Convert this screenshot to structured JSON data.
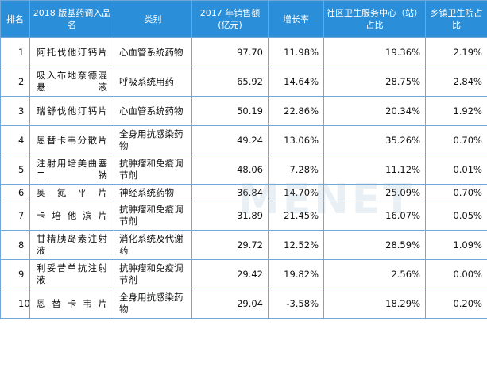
{
  "headers": {
    "rank": "排名",
    "drug": "2018 版基药调入品名",
    "category": "类别",
    "sales": "2017 年销售额(亿元)",
    "growth": "增长率",
    "community": "社区卫生服务中心（站）占比",
    "township": "乡镇卫生院占比"
  },
  "rows": [
    {
      "rank": "1",
      "drug": "阿托伐他汀钙片",
      "category": "心血管系统药物",
      "sales": "97.70",
      "growth": "11.98%",
      "community": "19.36%",
      "township": "2.19%"
    },
    {
      "rank": "2",
      "drug": "吸入布地奈德混悬液",
      "category": "呼吸系统用药",
      "sales": "65.92",
      "growth": "14.64%",
      "community": "28.75%",
      "township": "2.84%"
    },
    {
      "rank": "3",
      "drug": "瑞舒伐他汀钙片",
      "category": "心血管系统药物",
      "sales": "50.19",
      "growth": "22.86%",
      "community": "20.34%",
      "township": "1.92%"
    },
    {
      "rank": "4",
      "drug": "恩替卡韦分散片",
      "category": "全身用抗感染药物",
      "sales": "49.24",
      "growth": "13.06%",
      "community": "35.26%",
      "township": "0.70%"
    },
    {
      "rank": "5",
      "drug": "注射用培美曲塞二钠",
      "category": "抗肿瘤和免疫调节剂",
      "sales": "48.06",
      "growth": "7.28%",
      "community": "11.12%",
      "township": "0.01%"
    },
    {
      "rank": "6",
      "drug": "奥氮平片",
      "category": "神经系统药物",
      "sales": "36.84",
      "growth": "14.70%",
      "community": "25.09%",
      "township": "0.70%"
    },
    {
      "rank": "7",
      "drug": "卡培他滨片",
      "category": "抗肿瘤和免疫调节剂",
      "sales": "31.89",
      "growth": "21.45%",
      "community": "16.07%",
      "township": "0.05%"
    },
    {
      "rank": "8",
      "drug": "甘精胰岛素注射液",
      "category": "消化系统及代谢药",
      "sales": "29.72",
      "growth": "12.52%",
      "community": "28.59%",
      "township": "1.09%"
    },
    {
      "rank": "9",
      "drug": "利妥昔单抗注射液",
      "category": "抗肿瘤和免疫调节剂",
      "sales": "29.42",
      "growth": "19.82%",
      "community": "2.56%",
      "township": "0.00%"
    },
    {
      "rank": "10",
      "drug": "恩替卡韦片",
      "category": "全身用抗感染药物",
      "sales": "29.04",
      "growth": "-3.58%",
      "community": "18.29%",
      "township": "0.20%"
    }
  ],
  "watermark": "MENET",
  "colors": {
    "header_bg": "#2a8ed8",
    "header_text": "#ffffff",
    "border": "#6fa8d8"
  }
}
